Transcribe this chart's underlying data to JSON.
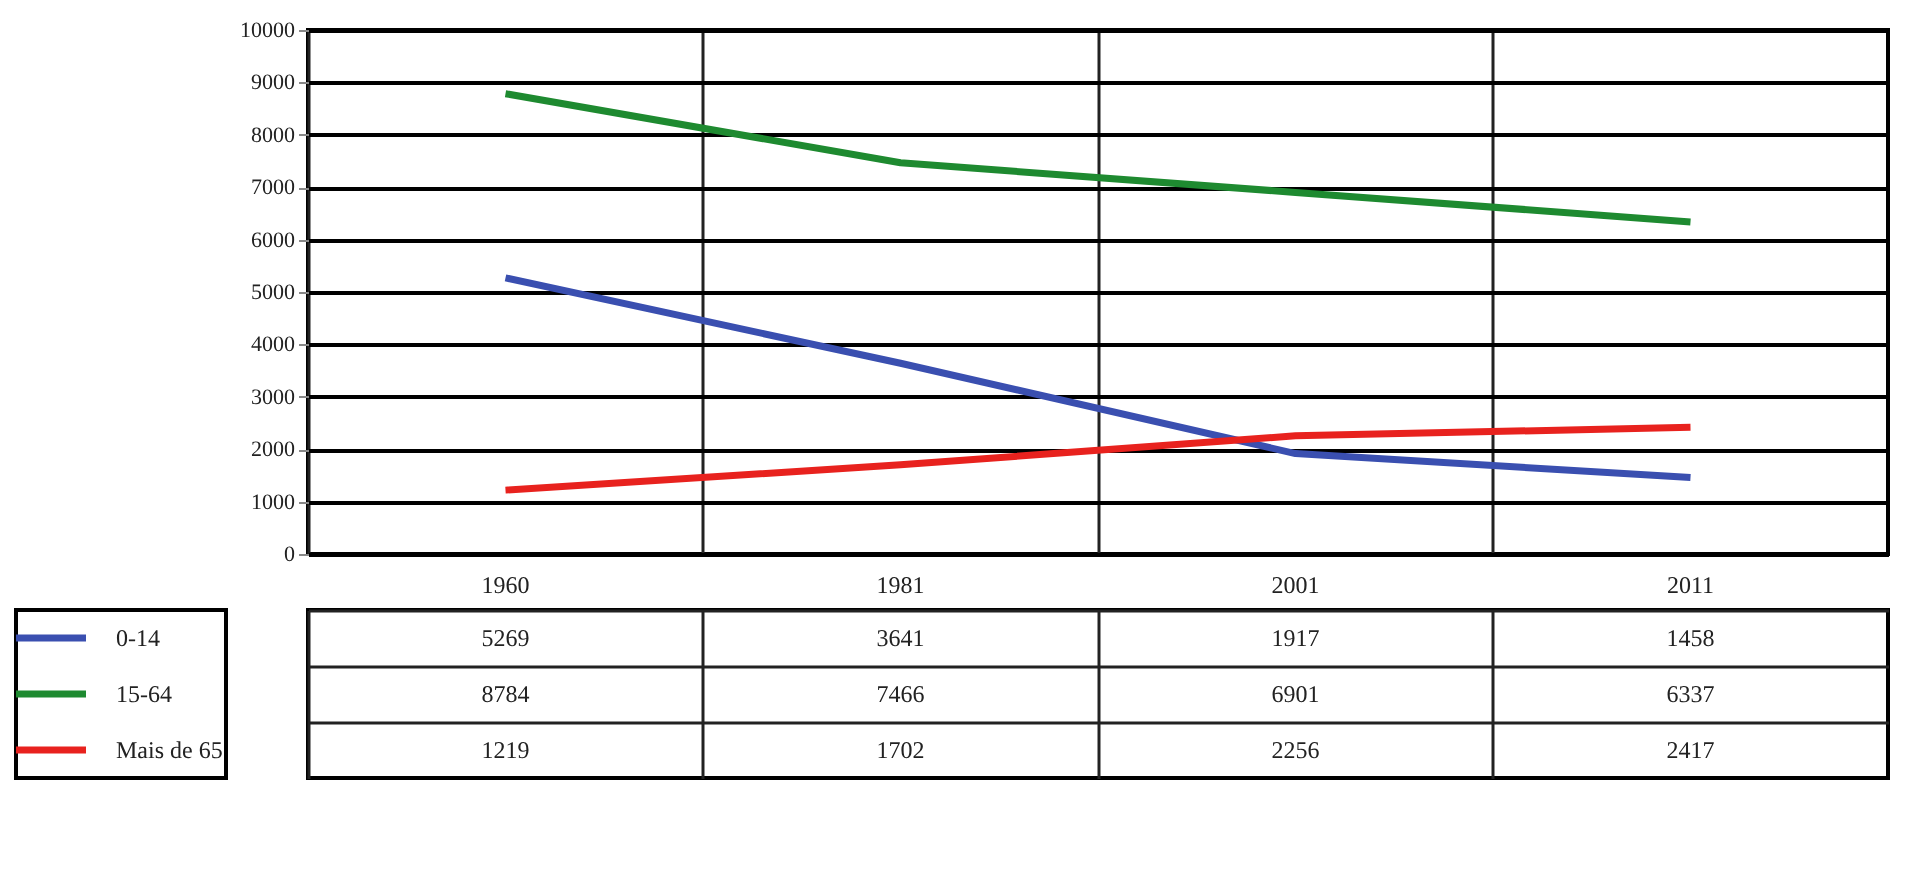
{
  "chart_data": {
    "type": "line",
    "categories": [
      "1960",
      "1981",
      "2001",
      "2011"
    ],
    "series": [
      {
        "name": "0-14",
        "color": "#3a4fb0",
        "values": [
          5269,
          3641,
          1917,
          1458
        ]
      },
      {
        "name": "15-64",
        "color": "#1e8a30",
        "values": [
          8784,
          7466,
          6901,
          6337
        ]
      },
      {
        "name": "Mais de 65",
        "color": "#e8221e",
        "values": [
          1219,
          1702,
          2256,
          2417
        ]
      }
    ],
    "ylim": [
      0,
      10000
    ],
    "yticks": [
      0,
      1000,
      2000,
      3000,
      4000,
      5000,
      6000,
      7000,
      8000,
      9000,
      10000
    ],
    "grid": true,
    "data_labels": true,
    "legend": "bottom left",
    "line_style": "solid",
    "marker": "none"
  }
}
